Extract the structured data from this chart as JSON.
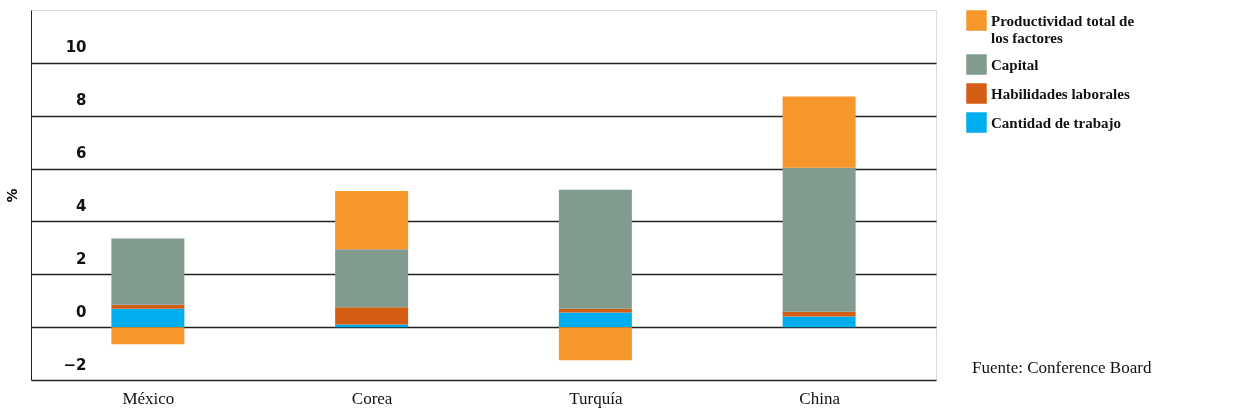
{
  "chart_data": {
    "type": "bar",
    "stacked": true,
    "categories": [
      "México",
      "Corea",
      "Turquía",
      "China"
    ],
    "series": [
      {
        "name": "Cantidad de trabajo",
        "color": "#00aeef",
        "values": [
          0.7,
          0.1,
          0.55,
          0.4
        ]
      },
      {
        "name": "Habilidades laborales",
        "color": "#d35e13",
        "values": [
          0.15,
          0.65,
          0.15,
          0.18
        ]
      },
      {
        "name": "Capital",
        "color": "#819c8f",
        "values": [
          2.5,
          2.2,
          4.5,
          5.45
        ]
      },
      {
        "name": "Productividad total de los factores",
        "color": "#f7962a",
        "values": [
          -0.65,
          2.2,
          -1.25,
          2.7
        ]
      }
    ],
    "ylabel": "%",
    "ylim": [
      -2,
      12
    ],
    "yticks": [
      -2,
      0,
      2,
      4,
      6,
      8,
      10
    ],
    "grid": "y",
    "legend": "top right",
    "annotations": [
      "Fuente: Conference Board"
    ]
  }
}
